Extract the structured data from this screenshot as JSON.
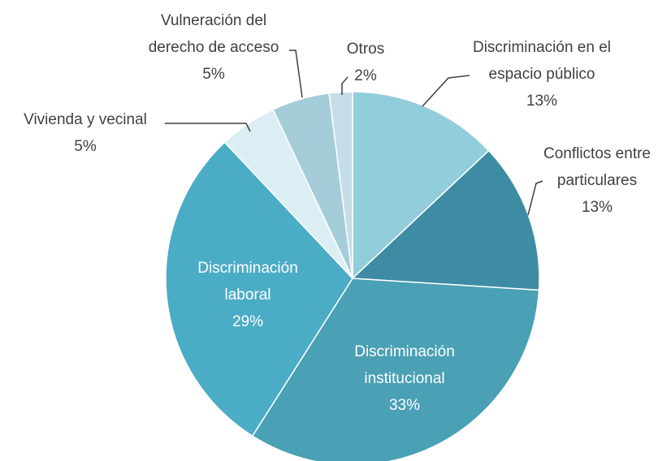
{
  "chart_data": {
    "type": "pie",
    "categories": [
      "Discriminación en el espacio público",
      "Conflictos entre particulares",
      "Discriminación institucional",
      "Discriminación laboral",
      "Vivienda y vecinal",
      "Vulneración del derecho de acceso",
      "Otros"
    ],
    "values": [
      13,
      13,
      33,
      29,
      5,
      5,
      2
    ],
    "value_labels": [
      "13%",
      "13%",
      "33%",
      "29%",
      "5%",
      "5%",
      "2%"
    ],
    "colors": [
      "#92cddc",
      "#3d8ca3",
      "#4aa0b5",
      "#4bacc6",
      "#dbeef4",
      "#a5cdd9",
      "#c5dde6"
    ]
  }
}
